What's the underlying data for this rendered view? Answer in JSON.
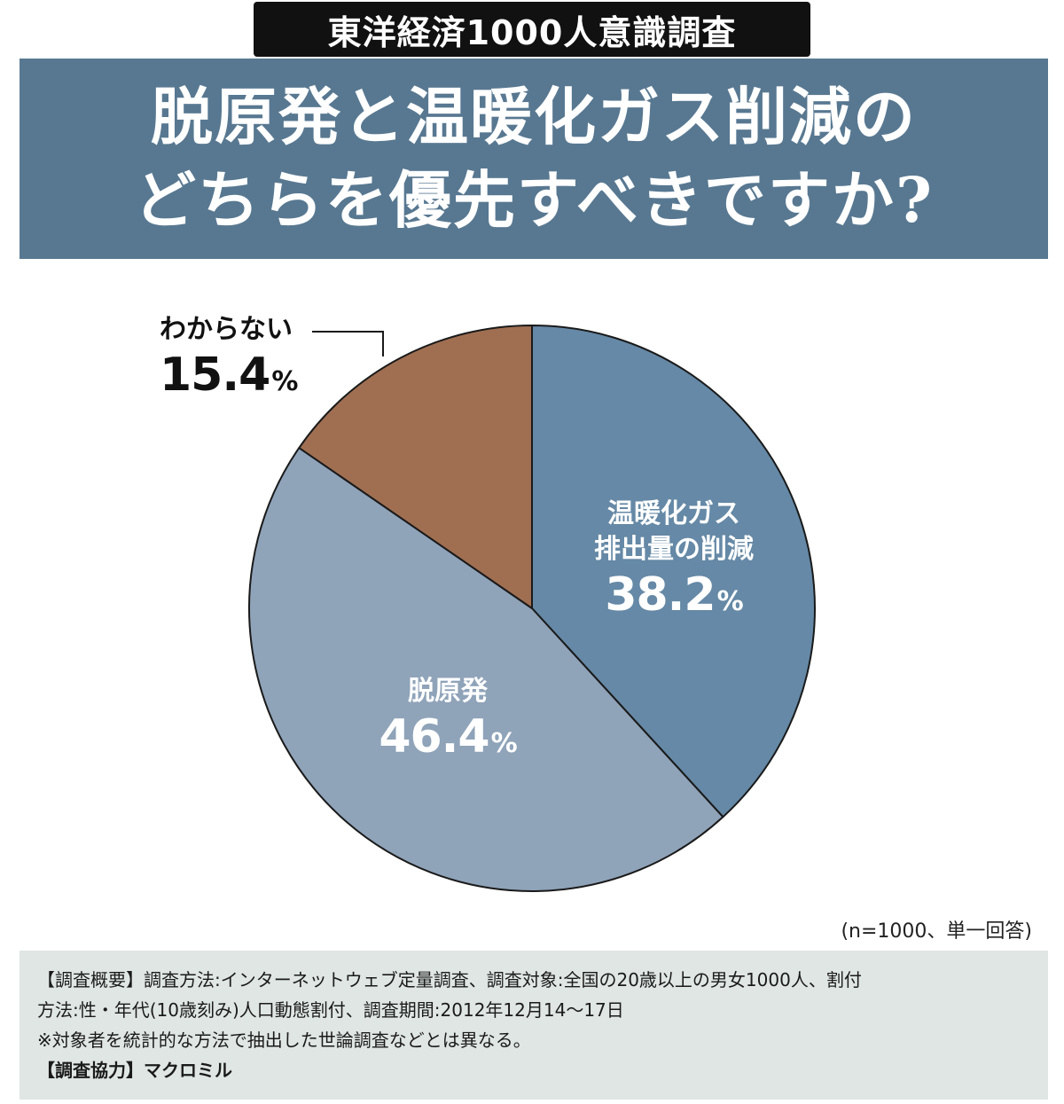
{
  "header": {
    "badge": "東洋経済1000人意識調査",
    "title_line1": "脱原発と温暖化ガス削減の",
    "title_line2": "どちらを優先すべきですか?"
  },
  "chart_data": {
    "type": "pie",
    "slices": [
      {
        "label_line1": "温暖化ガス",
        "label_line2": "排出量の削減",
        "value": 38.2,
        "display": "38.2",
        "color": "#6589a6"
      },
      {
        "label_line1": "脱原発",
        "value": 46.4,
        "display": "46.4",
        "color": "#8fa3b9"
      },
      {
        "label_line1": "わからない",
        "value": 15.4,
        "display": "15.4",
        "color": "#a06f52"
      }
    ],
    "unit": "%",
    "start": "12 o'clock",
    "direction": "clockwise"
  },
  "note": "(n=1000、単一回答)",
  "footer": {
    "line1": "【調査概要】調査方法:インターネットウェブ定量調査、調査対象:全国の20歳以上の男女1000人、割付",
    "line2": "方法:性・年代(10歳刻み)人口動態割付、調査期間:2012年12月14〜17日",
    "line3": "※対象者を統計的な方法で抽出した世論調査などとは異なる。",
    "line4": "【調査協力】マクロミル"
  }
}
